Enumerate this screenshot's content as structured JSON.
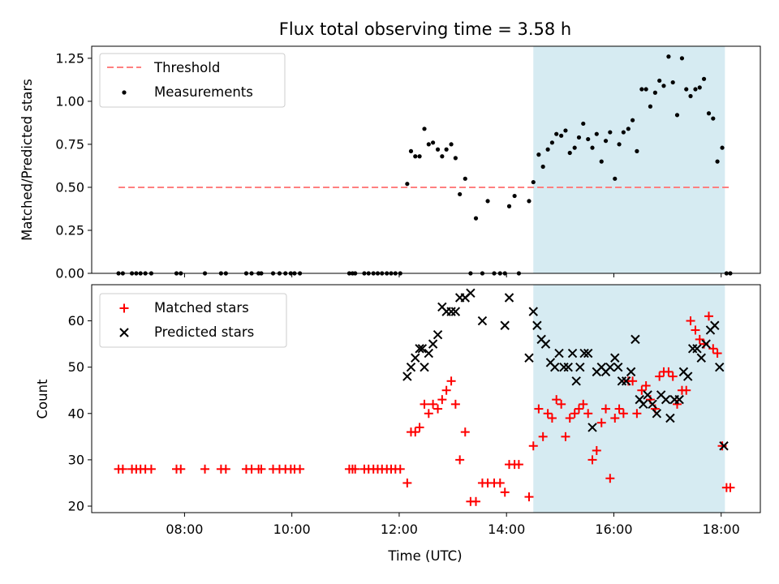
{
  "figure": {
    "title": "Flux total observing time = 3.58 h",
    "xlabel": "Time (UTC)"
  },
  "colors": {
    "threshold": "#ff8080",
    "measurements": "#000000",
    "matched": "#ff0000",
    "predicted": "#000000",
    "shade": "#add8e6"
  },
  "chart_data": [
    {
      "type": "scatter",
      "panel": "top",
      "ylabel": "Matched/Predicted stars",
      "xlim": [
        6.27,
        18.73
      ],
      "ylim": [
        0,
        1.32
      ],
      "yticks": [
        0.0,
        0.25,
        0.5,
        0.75,
        1.0,
        1.25
      ],
      "ytick_labels": [
        "0.00",
        "0.25",
        "0.50",
        "0.75",
        "1.00",
        "1.25"
      ],
      "xticks": [
        8,
        10,
        12,
        14,
        16,
        18
      ],
      "grid": false,
      "legend_position": "top-left",
      "shaded_region": {
        "x_start": 14.5,
        "x_end": 18.07
      },
      "threshold": {
        "name": "Threshold",
        "y": 0.5,
        "x_start": 6.77,
        "x_end": 18.17,
        "style": "dashed"
      },
      "series": [
        {
          "name": "Measurements",
          "marker": "dot",
          "x": [
            6.77,
            6.85,
            7.02,
            7.1,
            7.18,
            7.27,
            7.38,
            7.85,
            7.93,
            8.38,
            8.68,
            8.77,
            9.15,
            9.25,
            9.38,
            9.43,
            9.65,
            9.77,
            9.88,
            9.98,
            10.05,
            10.15,
            11.07,
            11.13,
            11.18,
            11.35,
            11.43,
            11.52,
            11.6,
            11.68,
            11.77,
            11.85,
            11.93,
            12.02,
            12.15,
            12.22,
            12.3,
            12.38,
            12.47,
            12.55,
            12.63,
            12.72,
            12.8,
            12.88,
            12.97,
            13.05,
            13.13,
            13.23,
            13.33,
            13.43,
            13.55,
            13.65,
            13.77,
            13.88,
            13.97,
            14.05,
            14.15,
            14.23,
            14.42,
            14.5,
            14.6,
            14.68,
            14.77,
            14.85,
            14.93,
            15.02,
            15.1,
            15.18,
            15.27,
            15.35,
            15.43,
            15.52,
            15.6,
            15.68,
            15.77,
            15.85,
            15.93,
            16.02,
            16.1,
            16.18,
            16.27,
            16.35,
            16.43,
            16.52,
            16.6,
            16.68,
            16.77,
            16.85,
            16.93,
            17.02,
            17.1,
            17.18,
            17.27,
            17.35,
            17.43,
            17.52,
            17.6,
            17.68,
            17.77,
            17.85,
            17.93,
            18.02,
            18.1,
            18.17
          ],
          "y": [
            0,
            0,
            0,
            0,
            0,
            0,
            0,
            0,
            0,
            0,
            0,
            0,
            0,
            0,
            0,
            0,
            0,
            0,
            0,
            0,
            0,
            0,
            0,
            0,
            0,
            0,
            0,
            0,
            0,
            0,
            0,
            0,
            0,
            0,
            0.52,
            0.71,
            0.68,
            0.68,
            0.84,
            0.75,
            0.76,
            0.72,
            0.68,
            0.72,
            0.75,
            0.67,
            0.46,
            0.55,
            0,
            0.32,
            0,
            0.42,
            0,
            0,
            0,
            0.39,
            0.45,
            0,
            0.42,
            0.53,
            0.69,
            0.62,
            0.72,
            0.76,
            0.81,
            0.8,
            0.83,
            0.7,
            0.73,
            0.79,
            0.87,
            0.78,
            0.73,
            0.81,
            0.65,
            0.77,
            0.82,
            0.55,
            0.75,
            0.82,
            0.84,
            0.89,
            0.71,
            1.07,
            1.07,
            0.97,
            1.05,
            1.12,
            1.09,
            1.26,
            1.11,
            0.92,
            1.25,
            1.07,
            1.03,
            1.07,
            1.08,
            1.13,
            0.93,
            0.9,
            0.65,
            0.73,
            0,
            0
          ]
        }
      ]
    },
    {
      "type": "scatter",
      "panel": "bottom",
      "ylabel": "Count",
      "xlim": [
        6.27,
        18.73
      ],
      "ylim": [
        18.6,
        67.8
      ],
      "yticks": [
        20,
        30,
        40,
        50,
        60
      ],
      "ytick_labels": [
        "20",
        "30",
        "40",
        "50",
        "60"
      ],
      "xticks": [
        8,
        10,
        12,
        14,
        16,
        18
      ],
      "xtick_labels": [
        "08:00",
        "10:00",
        "12:00",
        "14:00",
        "16:00",
        "18:00"
      ],
      "grid": false,
      "legend_position": "top-left",
      "shaded_region": {
        "x_start": 14.5,
        "x_end": 18.07
      },
      "series": [
        {
          "name": "Matched stars",
          "marker": "plus",
          "x": [
            6.77,
            6.85,
            7.02,
            7.1,
            7.18,
            7.27,
            7.38,
            7.85,
            7.93,
            8.38,
            8.68,
            8.77,
            9.15,
            9.25,
            9.38,
            9.43,
            9.65,
            9.77,
            9.88,
            9.98,
            10.05,
            10.15,
            11.07,
            11.13,
            11.18,
            11.35,
            11.43,
            11.52,
            11.6,
            11.68,
            11.77,
            11.85,
            11.93,
            12.02,
            12.15,
            12.22,
            12.3,
            12.38,
            12.47,
            12.55,
            12.63,
            12.72,
            12.8,
            12.88,
            12.97,
            13.05,
            13.13,
            13.23,
            13.33,
            13.43,
            13.55,
            13.65,
            13.77,
            13.88,
            13.97,
            14.05,
            14.15,
            14.23,
            14.42,
            14.5,
            14.6,
            14.68,
            14.77,
            14.85,
            14.93,
            15.02,
            15.1,
            15.18,
            15.27,
            15.35,
            15.43,
            15.52,
            15.6,
            15.68,
            15.77,
            15.85,
            15.93,
            16.02,
            16.1,
            16.18,
            16.27,
            16.35,
            16.43,
            16.52,
            16.6,
            16.68,
            16.77,
            16.85,
            16.93,
            17.02,
            17.1,
            17.18,
            17.27,
            17.35,
            17.43,
            17.52,
            17.6,
            17.68,
            17.77,
            17.85,
            17.93,
            18.02,
            18.1,
            18.17
          ],
          "y": [
            28,
            28,
            28,
            28,
            28,
            28,
            28,
            28,
            28,
            28,
            28,
            28,
            28,
            28,
            28,
            28,
            28,
            28,
            28,
            28,
            28,
            28,
            28,
            28,
            28,
            28,
            28,
            28,
            28,
            28,
            28,
            28,
            28,
            28,
            25,
            36,
            36,
            37,
            42,
            40,
            42,
            41,
            43,
            45,
            47,
            42,
            30,
            36,
            21,
            21,
            25,
            25,
            25,
            25,
            23,
            29,
            29,
            29,
            22,
            33,
            41,
            35,
            40,
            39,
            43,
            42,
            35,
            39,
            40,
            41,
            42,
            40,
            30,
            32,
            38,
            41,
            26,
            39,
            41,
            40,
            47,
            47,
            40,
            45,
            46,
            43,
            41,
            48,
            49,
            49,
            48,
            42,
            45,
            45,
            60,
            58,
            56,
            55,
            61,
            54,
            53,
            33,
            24,
            24
          ]
        },
        {
          "name": "Predicted stars",
          "marker": "x",
          "x": [
            12.15,
            12.22,
            12.3,
            12.38,
            12.43,
            12.47,
            12.55,
            12.63,
            12.72,
            12.8,
            12.88,
            12.97,
            13.05,
            13.13,
            13.23,
            13.33,
            13.55,
            13.97,
            14.05,
            14.42,
            14.5,
            14.57,
            14.65,
            14.73,
            14.82,
            14.9,
            14.98,
            15.07,
            15.15,
            15.23,
            15.3,
            15.37,
            15.45,
            15.52,
            15.6,
            15.68,
            15.77,
            15.85,
            15.93,
            16.02,
            16.08,
            16.15,
            16.23,
            16.32,
            16.4,
            16.48,
            16.55,
            16.63,
            16.72,
            16.8,
            16.88,
            16.97,
            17.05,
            17.13,
            17.22,
            17.3,
            17.38,
            17.47,
            17.55,
            17.63,
            17.72,
            17.8,
            17.88,
            17.97,
            18.05
          ],
          "y": [
            48,
            50,
            52,
            54,
            54,
            50,
            53,
            55,
            57,
            63,
            62,
            62,
            62,
            65,
            65,
            66,
            60,
            59,
            65,
            52,
            62,
            59,
            56,
            55,
            51,
            50,
            53,
            50,
            50,
            53,
            47,
            50,
            53,
            53,
            37,
            49,
            50,
            49,
            50,
            52,
            50,
            47,
            47,
            49,
            56,
            43,
            42,
            44,
            42,
            40,
            44,
            43,
            39,
            43,
            43,
            49,
            48,
            54,
            54,
            52,
            55,
            58,
            59,
            50,
            33
          ]
        }
      ]
    }
  ]
}
